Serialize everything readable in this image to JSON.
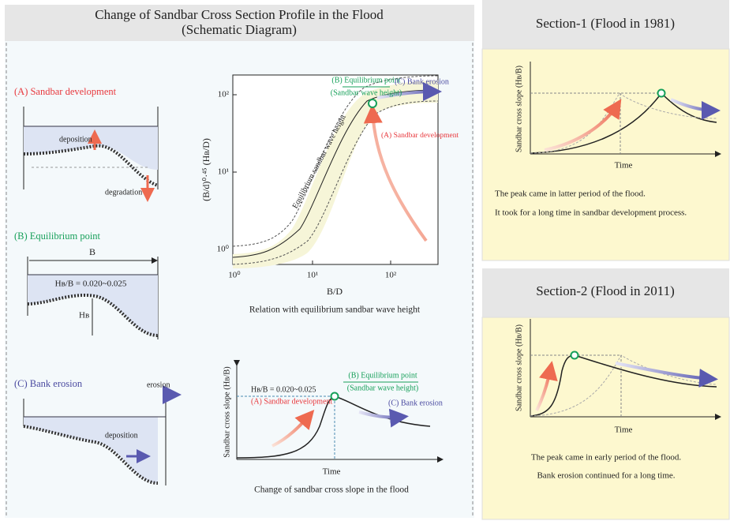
{
  "main": {
    "title": "Change of Sandbar Cross Section Profile in the Flood",
    "subtitle": "(Schematic Diagram)",
    "stages": [
      {
        "label": "(A) Sandbar development",
        "annotations": [
          "deposition",
          "degradation"
        ]
      },
      {
        "label": "(B) Equilibrium point",
        "annotations": [
          "B",
          "Hʙ/B = 0.020~0.025",
          "Hʙ"
        ]
      },
      {
        "label": "(C) Bank erosion",
        "annotations": [
          "erosion",
          "deposition"
        ]
      }
    ],
    "relation_chart": {
      "y_label": "(B/d)⁰·⁴⁵ (Hʙ/D)",
      "x_label": "B/D",
      "band_label": "Equilibrium sandbar wave height",
      "x_tick_labels": [
        "10⁰",
        "10¹",
        "10²"
      ],
      "y_tick_labels": [
        "10⁰",
        "10¹",
        "10²"
      ],
      "point_labels": [
        "(B) Equilibrium point",
        "(Sandbar wave height)",
        "(C) Bank erosion",
        "(A) Sandbar development"
      ],
      "caption": "Relation with equilibrium sandbar wave height"
    },
    "slope_chart": {
      "y_label": "Sandbar cross slope (Hʙ/B)",
      "x_label": "Time",
      "range_label": "Hʙ/B = 0.020~0.025",
      "point_labels": [
        "(B) Equilibrium point",
        "(Sandbar wave height)",
        "(A) Sandbar development",
        "(C) Bank erosion"
      ],
      "caption": "Change of sandbar cross slope in  the flood"
    }
  },
  "sections": [
    {
      "title": "Section-1 (Flood in 1981)",
      "y_label": "Sandbar cross slope (Hʙ/B)",
      "x_label": "Time",
      "notes": [
        "The peak came in latter period of the flood.",
        "It took for a long time in sandbar development process."
      ]
    },
    {
      "title": "Section-2 (Flood in 2011)",
      "y_label": "Sandbar cross slope (Hʙ/B)",
      "x_label": "Time",
      "notes": [
        "The peak came in early period of the flood.",
        "Bank erosion continued for a long time."
      ]
    }
  ]
}
